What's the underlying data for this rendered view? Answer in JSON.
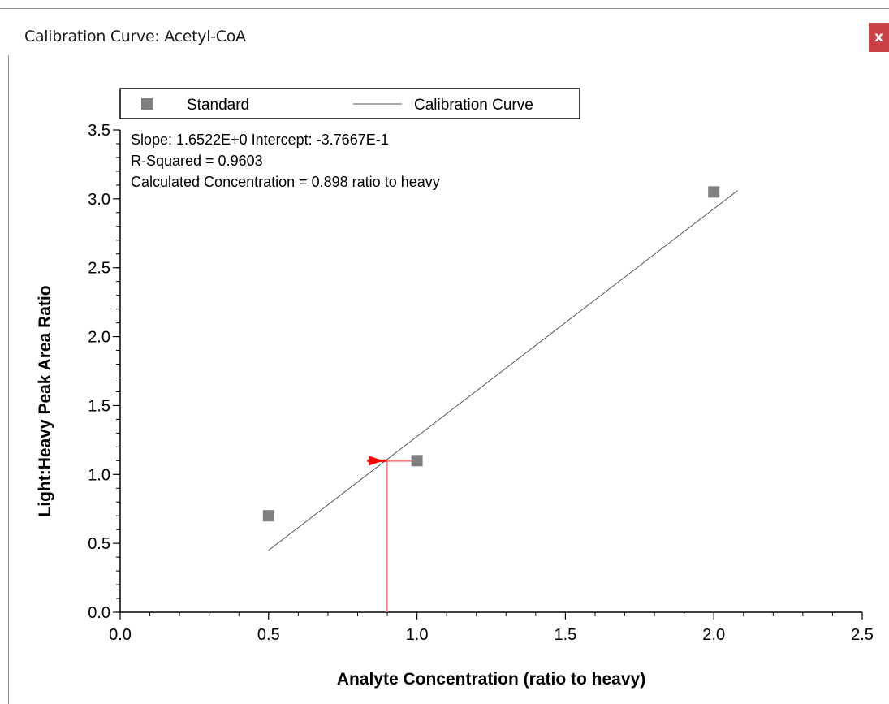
{
  "window": {
    "title": "Calibration Curve: Acetyl-CoA",
    "close_label": "x"
  },
  "chart_data": {
    "type": "scatter",
    "xlabel": "Analyte Concentration (ratio to heavy)",
    "ylabel": "Light:Heavy Peak Area Ratio",
    "xlim": [
      0,
      2.5
    ],
    "ylim": [
      0,
      3.5
    ],
    "x_ticks": [
      "0.0",
      "0.5",
      "1.0",
      "1.5",
      "2.0",
      "2.5"
    ],
    "y_ticks": [
      "0.0",
      "0.5",
      "1.0",
      "1.5",
      "2.0",
      "2.5",
      "3.0",
      "3.5"
    ],
    "legend": {
      "placement": "top",
      "entries": [
        "Standard",
        "Calibration Curve"
      ]
    },
    "series": [
      {
        "name": "Standard",
        "type": "scatter",
        "color": "#808080",
        "points": [
          {
            "x": 0.5,
            "y": 0.7
          },
          {
            "x": 1.0,
            "y": 1.1
          },
          {
            "x": 2.0,
            "y": 3.05
          }
        ]
      },
      {
        "name": "Calibration Curve",
        "type": "line",
        "color": "#555555",
        "slope": 1.6522,
        "intercept": -0.37667,
        "x_range": [
          0.5,
          2.08
        ]
      }
    ],
    "annotations": [
      "Slope: 1.6522E+0 Intercept: -3.7667E-1",
      "R-Squared = 0.9603",
      "Calculated Concentration = 0.898 ratio to heavy"
    ],
    "calculated_point": {
      "x": 0.898,
      "y": 1.1,
      "color": "#ff0000",
      "guide_color": "#f08080"
    }
  }
}
